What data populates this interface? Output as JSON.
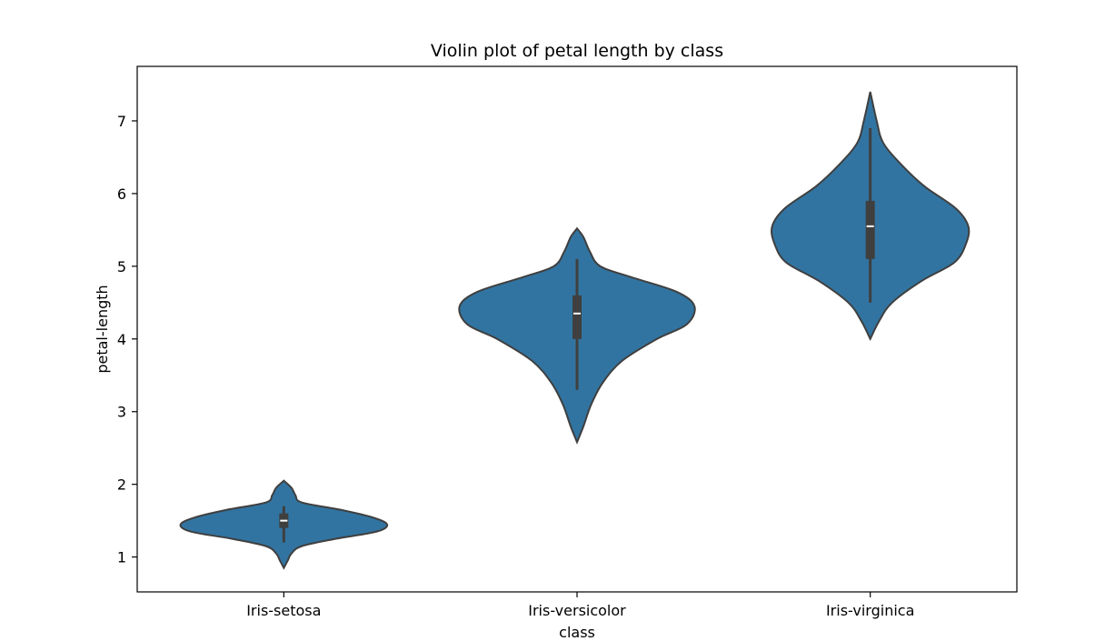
{
  "chart_data": {
    "type": "violin",
    "title": "Violin plot of petal length by class",
    "xlabel": "class",
    "ylabel": "petal-length",
    "categories": [
      "Iris-setosa",
      "Iris-versicolor",
      "Iris-virginica"
    ],
    "yticks": [
      1,
      2,
      3,
      4,
      5,
      6,
      7
    ],
    "ylim": [
      0.52,
      7.75
    ],
    "grid": false,
    "colors": {
      "fill": "#3274a1",
      "edge": "#3f3f3f",
      "box": "#3f3f3f",
      "median": "#ffffff"
    },
    "series": [
      {
        "category": "Iris-setosa",
        "whisker_low": 1.2,
        "q1": 1.4,
        "median": 1.5,
        "q3": 1.6,
        "whisker_high": 1.7,
        "density": [
          [
            0.85,
            0.0
          ],
          [
            0.95,
            0.03
          ],
          [
            1.05,
            0.06
          ],
          [
            1.15,
            0.14
          ],
          [
            1.25,
            0.4
          ],
          [
            1.35,
            0.72
          ],
          [
            1.45,
            0.8
          ],
          [
            1.55,
            0.68
          ],
          [
            1.65,
            0.44
          ],
          [
            1.75,
            0.14
          ],
          [
            1.85,
            0.09
          ],
          [
            1.95,
            0.06
          ],
          [
            2.05,
            0.0
          ]
        ]
      },
      {
        "category": "Iris-versicolor",
        "whisker_low": 3.3,
        "q1": 4.0,
        "median": 4.35,
        "q3": 4.6,
        "whisker_high": 5.1,
        "density": [
          [
            2.58,
            0.0
          ],
          [
            2.8,
            0.05
          ],
          [
            3.1,
            0.11
          ],
          [
            3.4,
            0.2
          ],
          [
            3.7,
            0.35
          ],
          [
            4.0,
            0.62
          ],
          [
            4.2,
            0.85
          ],
          [
            4.45,
            0.91
          ],
          [
            4.65,
            0.77
          ],
          [
            4.85,
            0.42
          ],
          [
            5.0,
            0.18
          ],
          [
            5.2,
            0.1
          ],
          [
            5.4,
            0.05
          ],
          [
            5.52,
            0.0
          ]
        ]
      },
      {
        "category": "Iris-virginica",
        "whisker_low": 4.5,
        "q1": 5.1,
        "median": 5.55,
        "q3": 5.9,
        "whisker_high": 6.9,
        "density": [
          [
            4.0,
            0.0
          ],
          [
            4.25,
            0.07
          ],
          [
            4.5,
            0.17
          ],
          [
            4.8,
            0.4
          ],
          [
            5.05,
            0.65
          ],
          [
            5.3,
            0.74
          ],
          [
            5.55,
            0.76
          ],
          [
            5.8,
            0.66
          ],
          [
            6.1,
            0.42
          ],
          [
            6.4,
            0.24
          ],
          [
            6.7,
            0.1
          ],
          [
            7.0,
            0.05
          ],
          [
            7.4,
            0.0
          ]
        ]
      }
    ]
  }
}
